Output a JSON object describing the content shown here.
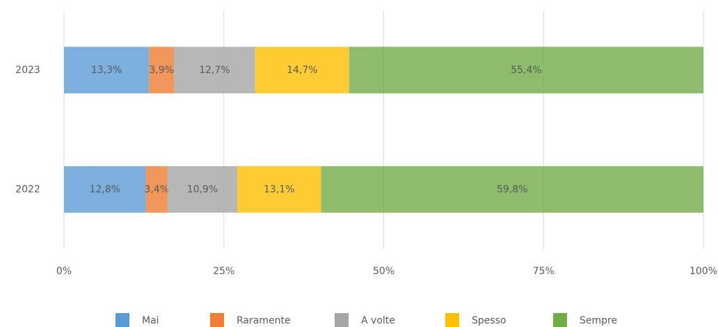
{
  "chart_data": {
    "type": "stacked-bar-horizontal",
    "categories": [
      "2023",
      "2022"
    ],
    "series": [
      {
        "name": "Mai",
        "color": "#5b9bd5",
        "values": [
          13.3,
          12.8
        ],
        "value_labels": [
          "13,3%",
          "12,8%"
        ]
      },
      {
        "name": "Raramente",
        "color": "#ed7d31",
        "values": [
          3.9,
          3.4
        ],
        "value_labels": [
          "3,9%",
          "3,4%"
        ]
      },
      {
        "name": "A volte",
        "color": "#a5a5a5",
        "values": [
          12.7,
          10.9
        ],
        "value_labels": [
          "12,7%",
          "10,9%"
        ]
      },
      {
        "name": "Spesso",
        "color": "#ffc000",
        "values": [
          14.7,
          13.1
        ],
        "value_labels": [
          "14,7%",
          "13,1%"
        ]
      },
      {
        "name": "Sempre",
        "color": "#70ad47",
        "values": [
          55.4,
          59.8
        ],
        "value_labels": [
          "55,4%",
          "59,8%"
        ]
      }
    ],
    "xlim": [
      0,
      100
    ],
    "xticks": [
      {
        "value": 0,
        "label": "0%"
      },
      {
        "value": 25,
        "label": "25%"
      },
      {
        "value": 50,
        "label": "50%"
      },
      {
        "value": 75,
        "label": "75%"
      },
      {
        "value": 100,
        "label": "100%"
      }
    ],
    "grid": true,
    "legend": "bottom"
  }
}
